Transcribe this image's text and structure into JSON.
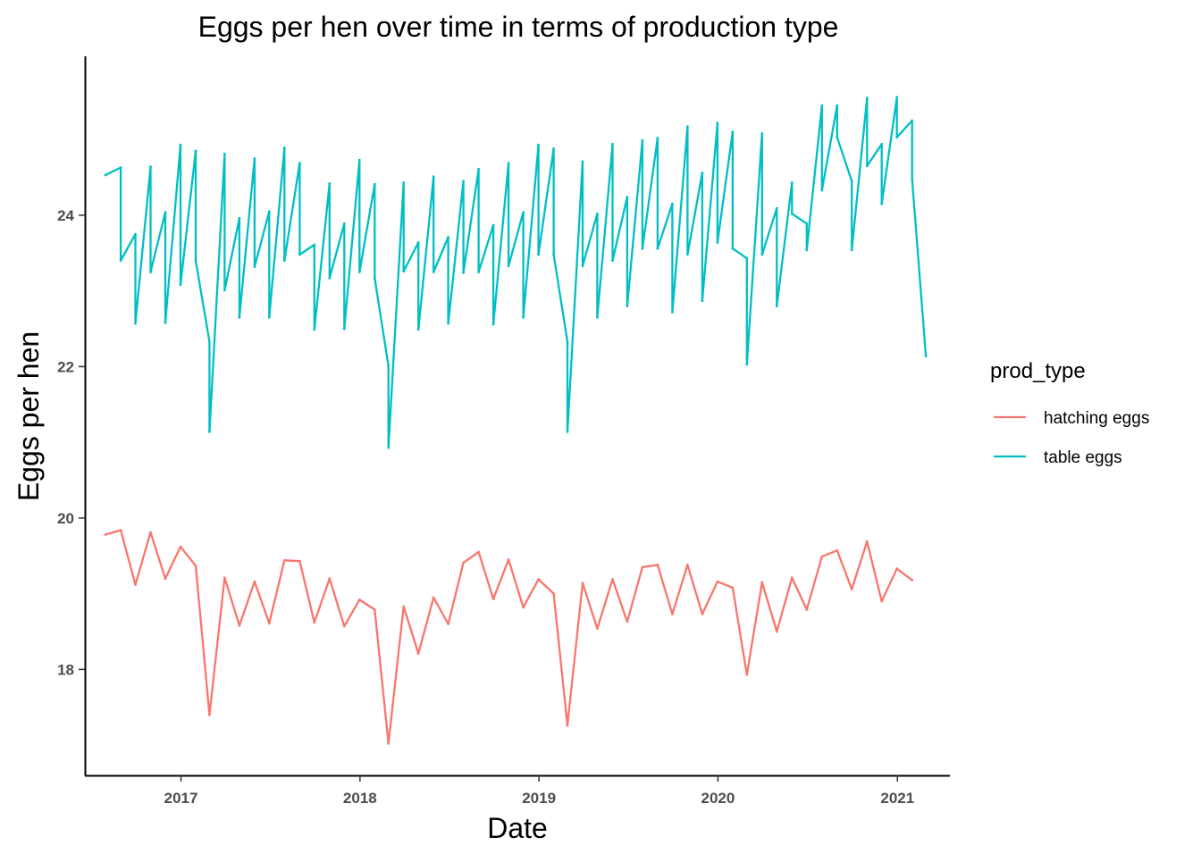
{
  "chart_data": {
    "type": "line",
    "title": "Eggs per hen over time in terms of production type",
    "xlabel": "Date",
    "ylabel": "Eggs per hen",
    "xlim": [
      "2016-06-19",
      "2021-04-18"
    ],
    "ylim": [
      16.6,
      26.1
    ],
    "x_ticks": [
      "2017",
      "2018",
      "2019",
      "2020",
      "2021"
    ],
    "y_ticks": [
      "18",
      "20",
      "22",
      "24"
    ],
    "legend": {
      "title": "prod_type",
      "position": "right"
    },
    "grid": false,
    "series": [
      {
        "name": "hatching eggs",
        "color": "#F8766D",
        "points": [
          {
            "x": "2016-07-31",
            "y": 19.78
          },
          {
            "x": "2016-08-31",
            "y": 19.84
          },
          {
            "x": "2016-09-30",
            "y": 19.12
          },
          {
            "x": "2016-10-31",
            "y": 19.81
          },
          {
            "x": "2016-11-30",
            "y": 19.2
          },
          {
            "x": "2016-12-31",
            "y": 19.62
          },
          {
            "x": "2017-01-31",
            "y": 19.37
          },
          {
            "x": "2017-02-28",
            "y": 17.4
          },
          {
            "x": "2017-03-31",
            "y": 19.21
          },
          {
            "x": "2017-04-30",
            "y": 18.58
          },
          {
            "x": "2017-05-31",
            "y": 19.16
          },
          {
            "x": "2017-06-30",
            "y": 18.61
          },
          {
            "x": "2017-07-31",
            "y": 19.44
          },
          {
            "x": "2017-08-31",
            "y": 19.43
          },
          {
            "x": "2017-09-30",
            "y": 18.62
          },
          {
            "x": "2017-10-31",
            "y": 19.2
          },
          {
            "x": "2017-11-30",
            "y": 18.57
          },
          {
            "x": "2017-12-31",
            "y": 18.92
          },
          {
            "x": "2018-01-31",
            "y": 18.79
          },
          {
            "x": "2018-02-28",
            "y": 17.02
          },
          {
            "x": "2018-03-31",
            "y": 18.83
          },
          {
            "x": "2018-04-30",
            "y": 18.21
          },
          {
            "x": "2018-05-31",
            "y": 18.95
          },
          {
            "x": "2018-06-30",
            "y": 18.6
          },
          {
            "x": "2018-07-31",
            "y": 19.41
          },
          {
            "x": "2018-08-31",
            "y": 19.55
          },
          {
            "x": "2018-09-30",
            "y": 18.93
          },
          {
            "x": "2018-10-31",
            "y": 19.45
          },
          {
            "x": "2018-11-30",
            "y": 18.82
          },
          {
            "x": "2018-12-31",
            "y": 19.19
          },
          {
            "x": "2019-01-31",
            "y": 19.0
          },
          {
            "x": "2019-02-28",
            "y": 17.26
          },
          {
            "x": "2019-03-31",
            "y": 19.14
          },
          {
            "x": "2019-04-30",
            "y": 18.54
          },
          {
            "x": "2019-05-31",
            "y": 19.19
          },
          {
            "x": "2019-06-30",
            "y": 18.63
          },
          {
            "x": "2019-07-31",
            "y": 19.35
          },
          {
            "x": "2019-08-31",
            "y": 19.38
          },
          {
            "x": "2019-09-30",
            "y": 18.73
          },
          {
            "x": "2019-10-31",
            "y": 19.38
          },
          {
            "x": "2019-11-30",
            "y": 18.73
          },
          {
            "x": "2019-12-31",
            "y": 19.16
          },
          {
            "x": "2020-01-31",
            "y": 19.08
          },
          {
            "x": "2020-02-29",
            "y": 17.93
          },
          {
            "x": "2020-03-31",
            "y": 19.15
          },
          {
            "x": "2020-04-30",
            "y": 18.5
          },
          {
            "x": "2020-05-31",
            "y": 19.21
          },
          {
            "x": "2020-06-30",
            "y": 18.79
          },
          {
            "x": "2020-07-31",
            "y": 19.49
          },
          {
            "x": "2020-08-31",
            "y": 19.57
          },
          {
            "x": "2020-09-30",
            "y": 19.06
          },
          {
            "x": "2020-10-31",
            "y": 19.69
          },
          {
            "x": "2020-11-30",
            "y": 18.9
          },
          {
            "x": "2020-12-31",
            "y": 19.33
          },
          {
            "x": "2021-01-31",
            "y": 19.18
          }
        ]
      },
      {
        "name": "table eggs",
        "color": "#00BFC4",
        "points": [
          {
            "x": "2016-07-31",
            "y": 24.53
          },
          {
            "x": "2016-08-31",
            "y": 24.63
          },
          {
            "x": "2016-08-31",
            "y": 23.4
          },
          {
            "x": "2016-09-30",
            "y": 23.75
          },
          {
            "x": "2016-09-30",
            "y": 22.57
          },
          {
            "x": "2016-10-31",
            "y": 24.64
          },
          {
            "x": "2016-10-31",
            "y": 23.25
          },
          {
            "x": "2016-11-30",
            "y": 24.04
          },
          {
            "x": "2016-11-30",
            "y": 22.58
          },
          {
            "x": "2016-12-31",
            "y": 24.93
          },
          {
            "x": "2016-12-31",
            "y": 23.08
          },
          {
            "x": "2017-01-31",
            "y": 24.85
          },
          {
            "x": "2017-01-31",
            "y": 23.4
          },
          {
            "x": "2017-02-28",
            "y": 22.33
          },
          {
            "x": "2017-02-28",
            "y": 21.14
          },
          {
            "x": "2017-03-31",
            "y": 24.81
          },
          {
            "x": "2017-03-31",
            "y": 23.01
          },
          {
            "x": "2017-04-30",
            "y": 23.96
          },
          {
            "x": "2017-04-30",
            "y": 22.65
          },
          {
            "x": "2017-05-31",
            "y": 24.75
          },
          {
            "x": "2017-05-31",
            "y": 23.32
          },
          {
            "x": "2017-06-30",
            "y": 24.05
          },
          {
            "x": "2017-06-30",
            "y": 22.65
          },
          {
            "x": "2017-07-31",
            "y": 24.89
          },
          {
            "x": "2017-07-31",
            "y": 23.4
          },
          {
            "x": "2017-08-31",
            "y": 24.69
          },
          {
            "x": "2017-08-31",
            "y": 23.48
          },
          {
            "x": "2017-09-30",
            "y": 23.61
          },
          {
            "x": "2017-09-30",
            "y": 22.49
          },
          {
            "x": "2017-10-31",
            "y": 24.42
          },
          {
            "x": "2017-10-31",
            "y": 23.17
          },
          {
            "x": "2017-11-30",
            "y": 23.89
          },
          {
            "x": "2017-11-30",
            "y": 22.5
          },
          {
            "x": "2017-12-31",
            "y": 24.73
          },
          {
            "x": "2017-12-31",
            "y": 23.25
          },
          {
            "x": "2018-01-31",
            "y": 24.41
          },
          {
            "x": "2018-01-31",
            "y": 23.17
          },
          {
            "x": "2018-02-28",
            "y": 22.01
          },
          {
            "x": "2018-02-28",
            "y": 20.93
          },
          {
            "x": "2018-03-31",
            "y": 24.43
          },
          {
            "x": "2018-03-31",
            "y": 23.26
          },
          {
            "x": "2018-04-30",
            "y": 23.64
          },
          {
            "x": "2018-04-30",
            "y": 22.49
          },
          {
            "x": "2018-05-31",
            "y": 24.51
          },
          {
            "x": "2018-05-31",
            "y": 23.25
          },
          {
            "x": "2018-06-30",
            "y": 23.71
          },
          {
            "x": "2018-06-30",
            "y": 22.57
          },
          {
            "x": "2018-07-31",
            "y": 24.45
          },
          {
            "x": "2018-07-31",
            "y": 23.24
          },
          {
            "x": "2018-08-31",
            "y": 24.61
          },
          {
            "x": "2018-08-31",
            "y": 23.25
          },
          {
            "x": "2018-09-30",
            "y": 23.87
          },
          {
            "x": "2018-09-30",
            "y": 22.56
          },
          {
            "x": "2018-10-31",
            "y": 24.69
          },
          {
            "x": "2018-10-31",
            "y": 23.33
          },
          {
            "x": "2018-11-30",
            "y": 24.04
          },
          {
            "x": "2018-11-30",
            "y": 22.65
          },
          {
            "x": "2018-12-31",
            "y": 24.93
          },
          {
            "x": "2018-12-31",
            "y": 23.48
          },
          {
            "x": "2019-01-31",
            "y": 24.88
          },
          {
            "x": "2019-01-31",
            "y": 23.48
          },
          {
            "x": "2019-02-28",
            "y": 22.33
          },
          {
            "x": "2019-02-28",
            "y": 21.14
          },
          {
            "x": "2019-03-31",
            "y": 24.71
          },
          {
            "x": "2019-03-31",
            "y": 23.33
          },
          {
            "x": "2019-04-30",
            "y": 24.02
          },
          {
            "x": "2019-04-30",
            "y": 22.65
          },
          {
            "x": "2019-05-31",
            "y": 24.94
          },
          {
            "x": "2019-05-31",
            "y": 23.4
          },
          {
            "x": "2019-06-30",
            "y": 24.24
          },
          {
            "x": "2019-06-30",
            "y": 22.8
          },
          {
            "x": "2019-07-31",
            "y": 24.99
          },
          {
            "x": "2019-07-31",
            "y": 23.56
          },
          {
            "x": "2019-08-31",
            "y": 25.02
          },
          {
            "x": "2019-08-31",
            "y": 23.56
          },
          {
            "x": "2019-09-30",
            "y": 24.15
          },
          {
            "x": "2019-09-30",
            "y": 22.72
          },
          {
            "x": "2019-10-31",
            "y": 25.17
          },
          {
            "x": "2019-10-31",
            "y": 23.48
          },
          {
            "x": "2019-11-30",
            "y": 24.56
          },
          {
            "x": "2019-11-30",
            "y": 22.87
          },
          {
            "x": "2019-12-31",
            "y": 25.22
          },
          {
            "x": "2019-12-31",
            "y": 23.64
          },
          {
            "x": "2020-01-31",
            "y": 25.1
          },
          {
            "x": "2020-01-31",
            "y": 23.56
          },
          {
            "x": "2020-02-29",
            "y": 23.43
          },
          {
            "x": "2020-02-29",
            "y": 22.03
          },
          {
            "x": "2020-03-31",
            "y": 25.08
          },
          {
            "x": "2020-03-31",
            "y": 23.48
          },
          {
            "x": "2020-04-30",
            "y": 24.09
          },
          {
            "x": "2020-04-30",
            "y": 22.8
          },
          {
            "x": "2020-05-31",
            "y": 24.43
          },
          {
            "x": "2020-05-31",
            "y": 24.02
          },
          {
            "x": "2020-06-30",
            "y": 23.89
          },
          {
            "x": "2020-06-30",
            "y": 23.54
          },
          {
            "x": "2020-07-31",
            "y": 25.45
          },
          {
            "x": "2020-07-31",
            "y": 24.33
          },
          {
            "x": "2020-08-31",
            "y": 25.45
          },
          {
            "x": "2020-08-31",
            "y": 25.03
          },
          {
            "x": "2020-09-30",
            "y": 24.45
          },
          {
            "x": "2020-09-30",
            "y": 23.54
          },
          {
            "x": "2020-10-31",
            "y": 25.55
          },
          {
            "x": "2020-10-31",
            "y": 24.65
          },
          {
            "x": "2020-11-30",
            "y": 24.94
          },
          {
            "x": "2020-11-30",
            "y": 24.15
          },
          {
            "x": "2020-12-31",
            "y": 25.56
          },
          {
            "x": "2020-12-31",
            "y": 25.03
          },
          {
            "x": "2021-01-31",
            "y": 25.25
          },
          {
            "x": "2021-01-31",
            "y": 24.48
          },
          {
            "x": "2021-02-28",
            "y": 22.14
          }
        ]
      }
    ]
  }
}
